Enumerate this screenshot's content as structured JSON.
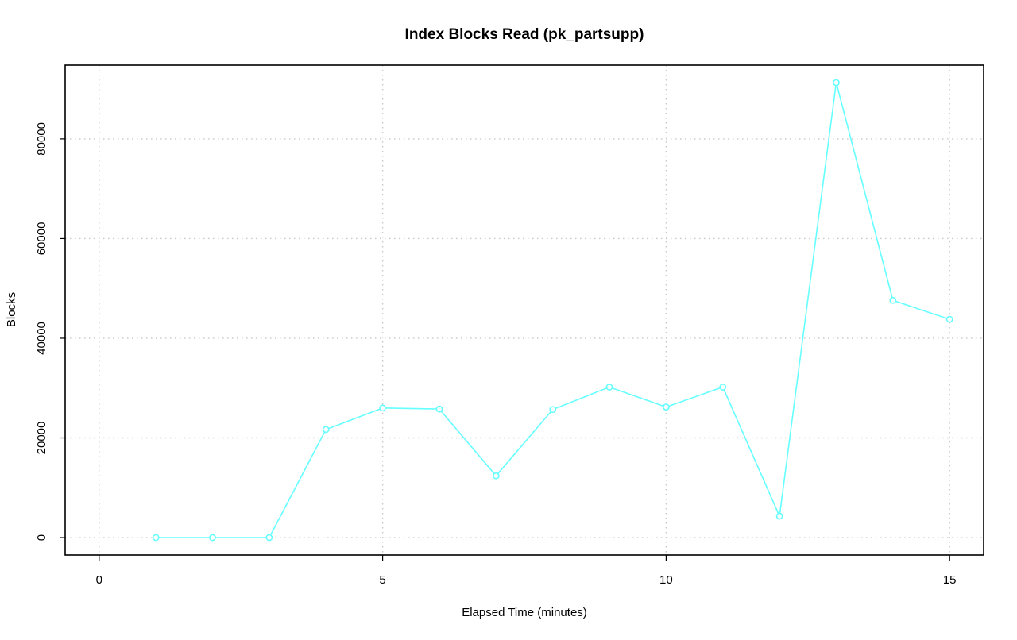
{
  "chart_data": {
    "type": "line",
    "title": "Index Blocks Read (pk_partsupp)",
    "xlabel": "Elapsed Time (minutes)",
    "ylabel": "Blocks",
    "xlim": [
      -0.6,
      15.6
    ],
    "ylim": [
      -3500,
      94800
    ],
    "x_ticks": [
      0,
      5,
      10,
      15
    ],
    "y_ticks": [
      0,
      20000,
      40000,
      60000,
      80000
    ],
    "grid": true,
    "series": [
      {
        "color": "#66ffff",
        "marker": "circle",
        "x": [
          1,
          2,
          3,
          4,
          5,
          6,
          7,
          8,
          9,
          10,
          11,
          12,
          13,
          14,
          15
        ],
        "y": [
          0,
          0,
          0,
          21700,
          26000,
          25800,
          12400,
          25700,
          30200,
          26200,
          30200,
          4300,
          91300,
          47600,
          43800
        ]
      }
    ]
  }
}
